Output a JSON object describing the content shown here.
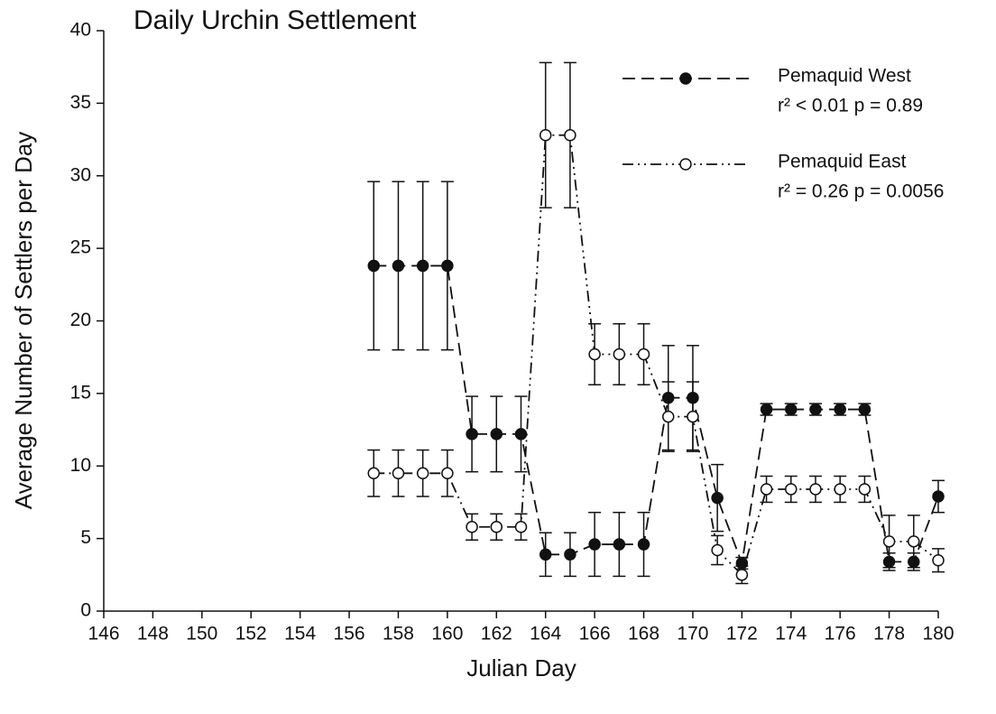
{
  "chart_data": {
    "type": "line",
    "title": "Daily Urchin Settlement",
    "x_label": "Julian Day",
    "y_label": "Average Number of Settlers per Day",
    "x": [
      157,
      158,
      159,
      160,
      161,
      162,
      163,
      164,
      165,
      166,
      167,
      168,
      169,
      170,
      171,
      172,
      173,
      174,
      175,
      176,
      177,
      178,
      179,
      180
    ],
    "series": [
      {
        "name": "Pemaquid West",
        "stats": "r² < 0.01  p = 0.89",
        "color": "#111111",
        "marker": "filled",
        "line_style": "dashed",
        "values": [
          23.8,
          23.8,
          23.8,
          23.8,
          12.2,
          12.2,
          12.2,
          3.9,
          3.9,
          4.6,
          4.6,
          4.6,
          14.7,
          14.7,
          7.8,
          3.3,
          13.9,
          13.9,
          13.9,
          13.9,
          13.9,
          3.4,
          3.4,
          7.9
        ],
        "errors": [
          5.8,
          5.8,
          5.8,
          5.8,
          2.6,
          2.6,
          2.6,
          1.5,
          1.5,
          2.2,
          2.2,
          2.2,
          3.6,
          3.6,
          2.3,
          0.4,
          0.4,
          0.4,
          0.4,
          0.4,
          0.4,
          0.6,
          0.6,
          1.1
        ]
      },
      {
        "name": "Pemaquid East",
        "stats": "r² = 0.26  p = 0.0056",
        "color": "#111111",
        "marker": "open",
        "line_style": "dash-dot-dot",
        "values": [
          9.5,
          9.5,
          9.5,
          9.5,
          5.8,
          5.8,
          5.8,
          32.8,
          32.8,
          17.7,
          17.7,
          17.7,
          13.4,
          13.4,
          4.2,
          2.5,
          8.4,
          8.4,
          8.4,
          8.4,
          8.4,
          4.8,
          4.8,
          3.5
        ],
        "errors": [
          1.6,
          1.6,
          1.6,
          1.6,
          0.9,
          0.9,
          0.9,
          5.0,
          5.0,
          2.1,
          2.1,
          2.1,
          2.4,
          2.4,
          1.0,
          0.6,
          0.9,
          0.9,
          0.9,
          0.9,
          0.9,
          1.8,
          1.8,
          0.8
        ]
      }
    ],
    "xlim": [
      146,
      180
    ],
    "xticks": [
      146,
      148,
      150,
      152,
      154,
      156,
      158,
      160,
      162,
      164,
      166,
      168,
      170,
      172,
      174,
      176,
      178,
      180
    ],
    "ylim": [
      0,
      40
    ],
    "yticks": [
      0,
      5,
      10,
      15,
      20,
      25,
      30,
      35,
      40
    ],
    "grid": false,
    "legend": "upper right"
  }
}
